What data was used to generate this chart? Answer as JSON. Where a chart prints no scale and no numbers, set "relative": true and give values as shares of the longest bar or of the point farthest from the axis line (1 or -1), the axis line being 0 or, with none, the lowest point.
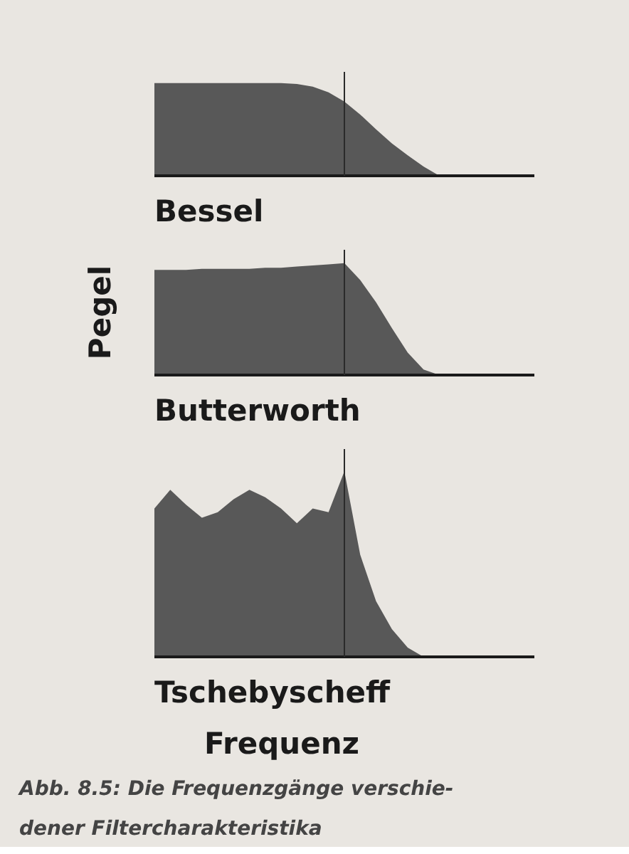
{
  "chart_data": [
    {
      "type": "area",
      "title": "Bessel",
      "relative": true,
      "categories": [
        null,
        null,
        null,
        null,
        null,
        null,
        null,
        null,
        null,
        null,
        null,
        null,
        null,
        null,
        null,
        null,
        null,
        null,
        null,
        null,
        null,
        null,
        null,
        null,
        null
      ],
      "series": [
        {
          "color": "#585858",
          "values": [
            1,
            1,
            1,
            1,
            1,
            1,
            1,
            1,
            1,
            0.99,
            0.96,
            0.9,
            0.8,
            0.66,
            0.5,
            0.35,
            0.22,
            0.1,
            0,
            0,
            0,
            0,
            0,
            0,
            0
          ]
        }
      ]
    },
    {
      "type": "area",
      "title": "Butterworth",
      "ylabel": "Pegel",
      "relative": true,
      "categories": [
        null,
        null,
        null,
        null,
        null,
        null,
        null,
        null,
        null,
        null,
        null,
        null,
        null,
        null,
        null,
        null,
        null,
        null,
        null,
        null,
        null,
        null,
        null,
        null,
        null
      ],
      "series": [
        {
          "color": "#585858",
          "values": [
            0.94,
            0.94,
            0.94,
            0.95,
            0.95,
            0.95,
            0.95,
            0.96,
            0.96,
            0.97,
            0.98,
            0.99,
            1,
            0.85,
            0.65,
            0.42,
            0.2,
            0.05,
            0,
            0,
            0,
            0,
            0,
            0,
            0
          ]
        }
      ]
    },
    {
      "type": "area",
      "title": "Tschebyscheff",
      "xlabel": "Frequenz",
      "relative": true,
      "categories": [
        null,
        null,
        null,
        null,
        null,
        null,
        null,
        null,
        null,
        null,
        null,
        null,
        null,
        null,
        null,
        null,
        null,
        null,
        null,
        null,
        null,
        null,
        null,
        null,
        null
      ],
      "series": [
        {
          "color": "#585858",
          "values": [
            0.8,
            0.9,
            0.82,
            0.75,
            0.78,
            0.85,
            0.9,
            0.86,
            0.8,
            0.72,
            0.8,
            0.78,
            1,
            0.55,
            0.3,
            0.15,
            0.05,
            0,
            0,
            0,
            0,
            0,
            0,
            0,
            0
          ]
        }
      ],
      "annotations": [
        "Abb. 8.5: Die Frequenzgänge verschie-\ndener Filtercharakteristika"
      ]
    }
  ]
}
